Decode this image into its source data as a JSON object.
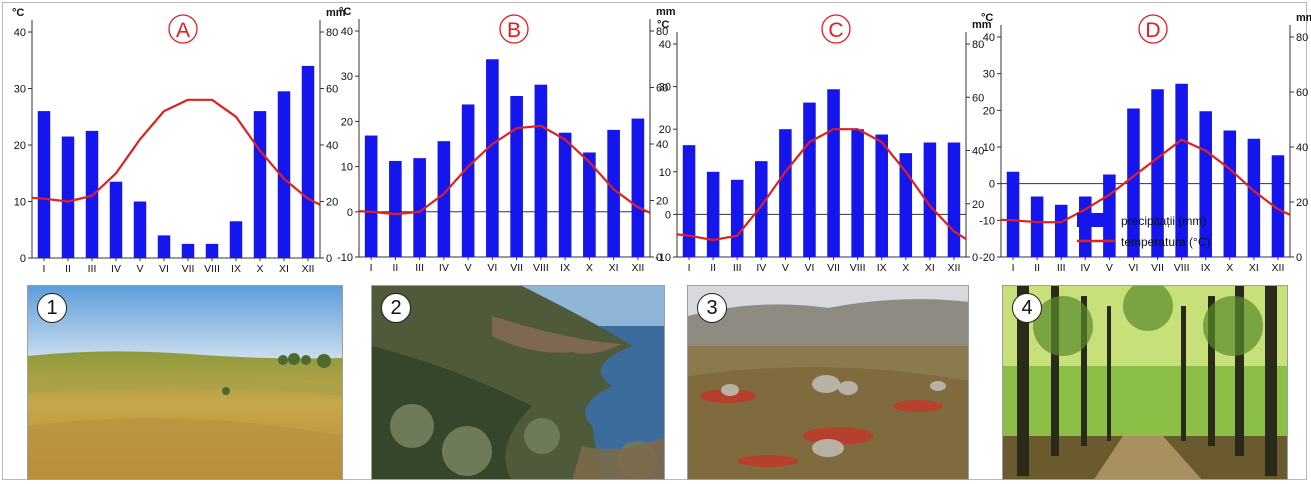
{
  "chart_data": [
    {
      "type": "bar",
      "title": "A",
      "categories": [
        "I",
        "II",
        "III",
        "IV",
        "V",
        "VI",
        "VII",
        "VIII",
        "IX",
        "X",
        "XI",
        "XII"
      ],
      "series": [
        {
          "name": "precipitații (mm)",
          "type": "bar",
          "axis": "right",
          "values": [
            52,
            43,
            45,
            27,
            20,
            8,
            5,
            5,
            13,
            52,
            59,
            68
          ]
        },
        {
          "name": "temperatura (°C)",
          "type": "line",
          "axis": "left",
          "values": [
            10.5,
            10,
            11,
            15,
            21,
            26,
            28,
            28,
            25,
            19,
            14,
            10.5
          ]
        }
      ],
      "ylabel": "°C",
      "y2label": "mm",
      "ylim": [
        0,
        40
      ],
      "y2lim": [
        0,
        80
      ],
      "yticks": [
        0,
        10,
        20,
        30,
        40
      ],
      "y2ticks": [
        0,
        20,
        40,
        60,
        80
      ]
    },
    {
      "type": "bar",
      "title": "B",
      "categories": [
        "I",
        "II",
        "III",
        "IV",
        "V",
        "VI",
        "VII",
        "VIII",
        "IX",
        "X",
        "XI",
        "XII"
      ],
      "series": [
        {
          "name": "precipitații (mm)",
          "type": "bar",
          "axis": "right",
          "values": [
            43,
            34,
            35,
            41,
            54,
            70,
            57,
            61,
            44,
            37,
            45,
            49
          ]
        },
        {
          "name": "temperatura (°C)",
          "type": "line",
          "axis": "left",
          "values": [
            0,
            -0.5,
            0,
            4,
            10,
            15,
            18.5,
            19,
            16,
            11,
            5,
            1
          ]
        }
      ],
      "ylabel": "°C",
      "y2label": "mm",
      "ylim": [
        -10,
        40
      ],
      "y2lim": [
        0,
        80
      ],
      "yticks": [
        -10,
        0,
        10,
        20,
        30,
        40
      ],
      "y2ticks": [
        0,
        20,
        40,
        60,
        80
      ]
    },
    {
      "type": "bar",
      "title": "C",
      "categories": [
        "I",
        "II",
        "III",
        "IV",
        "V",
        "VI",
        "VII",
        "VIII",
        "IX",
        "X",
        "XI",
        "XII"
      ],
      "series": [
        {
          "name": "precipitații (mm)",
          "type": "bar",
          "axis": "right",
          "values": [
            42,
            32,
            29,
            36,
            48,
            58,
            63,
            48,
            46,
            39,
            43,
            43
          ]
        },
        {
          "name": "temperatura (°C)",
          "type": "line",
          "axis": "left",
          "values": [
            -5,
            -6,
            -5,
            2,
            10,
            17,
            20,
            20,
            17,
            10,
            2,
            -4
          ]
        }
      ],
      "ylabel": "°C",
      "y2label": "mm",
      "ylim": [
        -10,
        40
      ],
      "y2lim": [
        0,
        80
      ],
      "yticks": [
        -10,
        0,
        10,
        20,
        30,
        40
      ],
      "y2ticks": [
        0,
        20,
        40,
        60,
        80
      ]
    },
    {
      "type": "bar",
      "title": "D",
      "categories": [
        "I",
        "II",
        "III",
        "IV",
        "V",
        "VI",
        "VII",
        "VIII",
        "IX",
        "X",
        "XI",
        "XII"
      ],
      "series": [
        {
          "name": "precipitații (mm)",
          "type": "bar",
          "axis": "right",
          "values": [
            31,
            22,
            19,
            22,
            30,
            54,
            61,
            63,
            53,
            46,
            43,
            37
          ]
        },
        {
          "name": "temperatura (°C)",
          "type": "line",
          "axis": "left",
          "values": [
            -10,
            -10.5,
            -10.5,
            -7,
            -3,
            2,
            7,
            12,
            9,
            4,
            -2,
            -7
          ]
        }
      ],
      "ylabel": "°C",
      "y2label": "mm",
      "ylim": [
        -20,
        40
      ],
      "y2lim": [
        0,
        80
      ],
      "yticks": [
        -20,
        -10,
        0,
        10,
        20,
        30,
        40
      ],
      "y2ticks": [
        0,
        20,
        40,
        60,
        80
      ],
      "legend": {
        "placement": "bottom-right",
        "entries": [
          "precipitații (mm)",
          "temperatura (°C)"
        ]
      }
    }
  ],
  "photos": [
    {
      "label": "1",
      "name": "steppe-grassland-photo"
    },
    {
      "label": "2",
      "name": "mediterranean-coast-photo"
    },
    {
      "label": "3",
      "name": "rocky-tundra-photo"
    },
    {
      "label": "4",
      "name": "deciduous-forest-photo"
    }
  ],
  "colors": {
    "bar": "#1515ee",
    "line": "#e02020",
    "title": "#e8191f",
    "axis": "#333333",
    "grid": "#dddddd"
  }
}
